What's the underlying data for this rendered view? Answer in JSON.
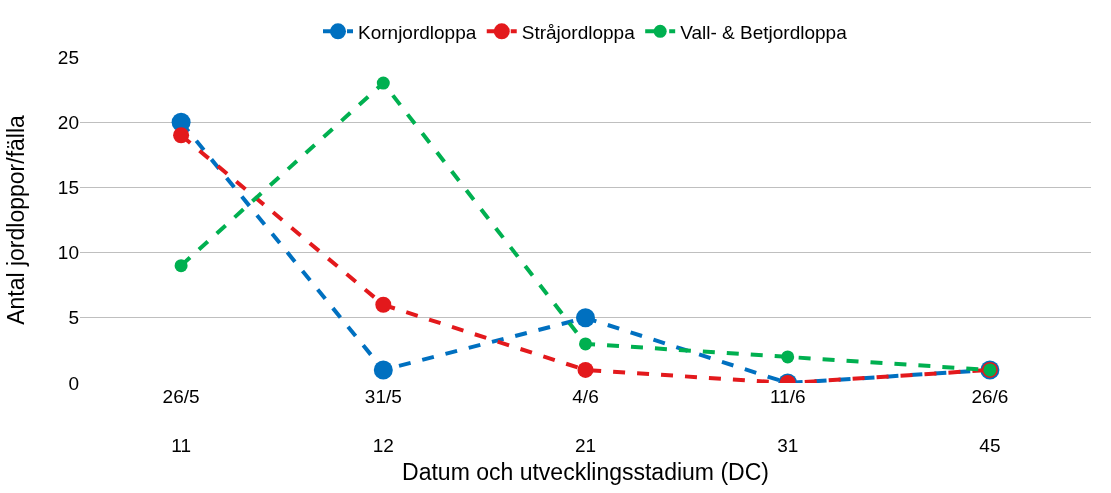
{
  "chart_data": {
    "type": "line",
    "xlabel": "Datum och utvecklingsstadium (DC)",
    "ylabel": "Antal jordloppor/fälla",
    "categories": [
      "26/5\n\n11",
      "31/5\n\n12",
      "4/6\n\n21",
      "11/6\n\n31",
      "26/6\n\n45"
    ],
    "series": [
      {
        "name": "Kornjordloppa",
        "color": "#0070c0",
        "values": [
          20,
          1,
          5,
          0,
          1
        ]
      },
      {
        "name": "Stråjordloppa",
        "color": "#e3191c",
        "values": [
          19,
          6,
          1,
          0,
          1
        ]
      },
      {
        "name": "Vall- & Betjordloppa",
        "color": "#00b050",
        "values": [
          9,
          23,
          3,
          2,
          1
        ]
      }
    ],
    "ylim": [
      0,
      25
    ],
    "yticks": [
      0,
      5,
      10,
      15,
      20,
      25
    ],
    "grid": "y",
    "legend": "top",
    "marker": "circle",
    "line_style": "dashed"
  }
}
